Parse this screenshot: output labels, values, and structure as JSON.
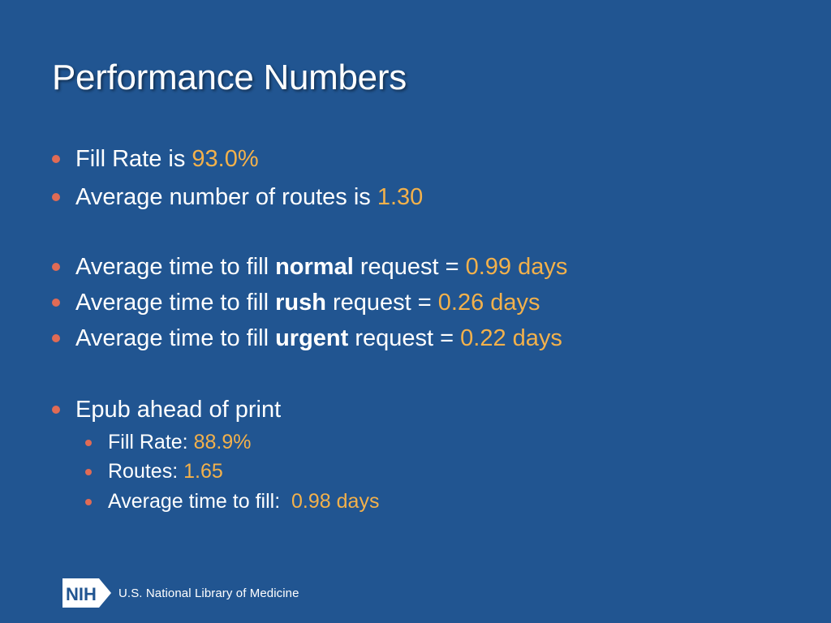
{
  "slide": {
    "title": "Performance Numbers",
    "bullets": [
      {
        "pre": "Fill Rate is ",
        "bold": "",
        "post": "",
        "value": "93.0%"
      },
      {
        "pre": "Average number of routes is ",
        "bold": "",
        "post": "",
        "value": "1.30"
      },
      {
        "pre": "Average time to fill ",
        "bold": "normal",
        "post": " request = ",
        "value": "0.99 days"
      },
      {
        "pre": "Average time to fill ",
        "bold": "rush",
        "post": " request = ",
        "value": "0.26 days"
      },
      {
        "pre": "Average time to fill ",
        "bold": "urgent",
        "post": " request = ",
        "value": "0.22 days"
      },
      {
        "pre": "Epub ahead of print",
        "bold": "",
        "post": "",
        "value": ""
      }
    ],
    "sub_bullets": [
      {
        "label": "Fill Rate: ",
        "value": "88.9%"
      },
      {
        "label": "Routes: ",
        "value": "1.65"
      },
      {
        "label": "Average time to fill:  ",
        "value": "0.98 days"
      }
    ]
  },
  "footer": {
    "logo_text": "NIH",
    "org_name": "U.S. National Library of Medicine"
  },
  "colors": {
    "background": "#215591",
    "accent_value": "#f3b14b",
    "bullet_dot": "#e06b55",
    "text": "#ffffff"
  },
  "icons": {
    "bullet": "bullet-dot-icon",
    "logo": "nih-logo-icon"
  }
}
